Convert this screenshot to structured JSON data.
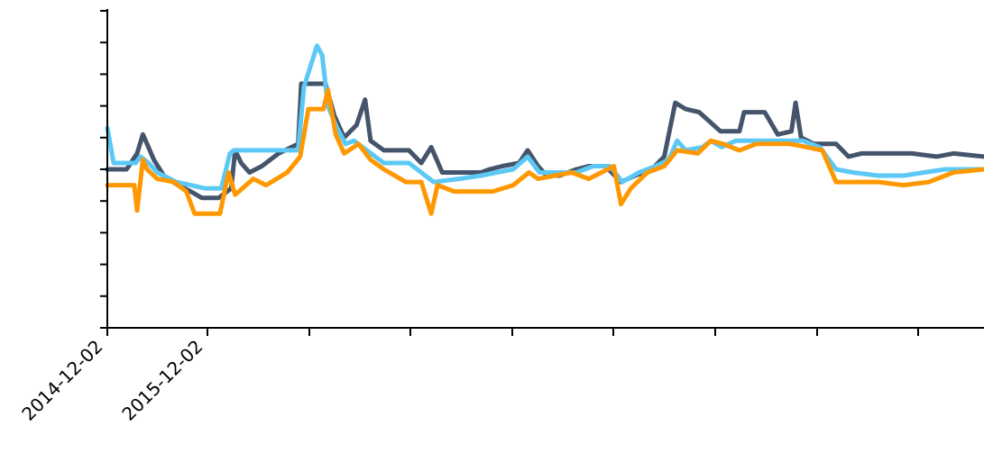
{
  "chart_data": {
    "type": "line",
    "title": "",
    "xlabel": "",
    "ylabel": "",
    "grid": false,
    "x_tick_labels": [
      "2014-12-02",
      "2015-12-02",
      "",
      "",
      "",
      "",
      "",
      "",
      ""
    ],
    "xlim": [
      "2014-12-02",
      "2023-08-20"
    ],
    "ylim": [
      0,
      10
    ],
    "y_tick_count": 11,
    "series": [
      {
        "color": "#44546A",
        "points": [
          [
            "2014-12-02",
            5.0
          ],
          [
            "2015-02-10",
            5.0
          ],
          [
            "2015-03-20",
            5.5
          ],
          [
            "2015-04-10",
            6.1
          ],
          [
            "2015-04-25",
            5.8
          ],
          [
            "2015-05-20",
            5.3
          ],
          [
            "2015-06-25",
            4.8
          ],
          [
            "2015-08-15",
            4.5
          ],
          [
            "2015-10-01",
            4.3
          ],
          [
            "2015-11-10",
            4.1
          ],
          [
            "2016-01-10",
            4.1
          ],
          [
            "2016-02-25",
            4.4
          ],
          [
            "2016-03-10",
            5.6
          ],
          [
            "2016-04-01",
            5.2
          ],
          [
            "2016-05-01",
            4.9
          ],
          [
            "2016-06-15",
            5.1
          ],
          [
            "2016-08-15",
            5.5
          ],
          [
            "2016-10-25",
            5.8
          ],
          [
            "2016-11-05",
            7.7
          ],
          [
            "2017-02-01",
            7.7
          ],
          [
            "2017-03-05",
            6.7
          ],
          [
            "2017-04-10",
            6.0
          ],
          [
            "2017-05-25",
            6.4
          ],
          [
            "2017-06-25",
            7.2
          ],
          [
            "2017-07-15",
            5.9
          ],
          [
            "2017-09-01",
            5.6
          ],
          [
            "2017-12-01",
            5.6
          ],
          [
            "2018-01-15",
            5.2
          ],
          [
            "2018-02-20",
            5.7
          ],
          [
            "2018-04-01",
            4.9
          ],
          [
            "2018-06-20",
            4.9
          ],
          [
            "2018-08-20",
            4.9
          ],
          [
            "2018-09-20",
            5.0
          ],
          [
            "2018-11-05",
            5.1
          ],
          [
            "2019-01-05",
            5.2
          ],
          [
            "2019-02-05",
            5.6
          ],
          [
            "2019-03-15",
            5.1
          ],
          [
            "2019-04-15",
            4.8
          ],
          [
            "2019-06-01",
            4.8
          ],
          [
            "2019-08-01",
            5.0
          ],
          [
            "2019-09-15",
            5.1
          ],
          [
            "2019-11-15",
            5.1
          ],
          [
            "2020-01-10",
            4.6
          ],
          [
            "2020-03-01",
            4.8
          ],
          [
            "2020-05-01",
            5.0
          ],
          [
            "2020-06-15",
            5.4
          ],
          [
            "2020-07-25",
            7.1
          ],
          [
            "2020-09-01",
            6.9
          ],
          [
            "2020-10-20",
            6.8
          ],
          [
            "2020-11-15",
            6.6
          ],
          [
            "2021-01-05",
            6.2
          ],
          [
            "2021-03-15",
            6.2
          ],
          [
            "2021-04-01",
            6.8
          ],
          [
            "2021-06-15",
            6.8
          ],
          [
            "2021-08-01",
            6.1
          ],
          [
            "2021-09-20",
            6.2
          ],
          [
            "2021-10-05",
            7.1
          ],
          [
            "2021-10-25",
            6.0
          ],
          [
            "2021-12-10",
            5.8
          ],
          [
            "2022-03-01",
            5.8
          ],
          [
            "2022-04-15",
            5.4
          ],
          [
            "2022-06-01",
            5.5
          ],
          [
            "2022-09-01",
            5.5
          ],
          [
            "2022-12-01",
            5.5
          ],
          [
            "2023-03-01",
            5.4
          ],
          [
            "2023-05-01",
            5.5
          ],
          [
            "2023-08-20",
            5.4
          ]
        ]
      },
      {
        "color": "#5BC8F5",
        "points": [
          [
            "2014-12-02",
            6.3
          ],
          [
            "2014-12-25",
            5.2
          ],
          [
            "2015-03-15",
            5.2
          ],
          [
            "2015-04-01",
            5.4
          ],
          [
            "2015-05-01",
            5.2
          ],
          [
            "2015-06-01",
            4.9
          ],
          [
            "2015-08-10",
            4.6
          ],
          [
            "2015-10-01",
            4.5
          ],
          [
            "2015-11-20",
            4.4
          ],
          [
            "2016-01-20",
            4.4
          ],
          [
            "2016-02-20",
            5.5
          ],
          [
            "2016-03-05",
            5.6
          ],
          [
            "2016-10-25",
            5.6
          ],
          [
            "2016-11-15",
            7.6
          ],
          [
            "2017-01-01",
            8.9
          ],
          [
            "2017-01-20",
            8.6
          ],
          [
            "2017-02-10",
            7.0
          ],
          [
            "2017-03-15",
            6.3
          ],
          [
            "2017-04-15",
            5.8
          ],
          [
            "2017-05-15",
            5.9
          ],
          [
            "2017-07-01",
            5.6
          ],
          [
            "2017-09-01",
            5.2
          ],
          [
            "2017-12-01",
            5.2
          ],
          [
            "2018-03-01",
            4.6
          ],
          [
            "2018-06-01",
            4.7
          ],
          [
            "2018-08-20",
            4.8
          ],
          [
            "2018-10-15",
            4.9
          ],
          [
            "2018-12-15",
            5.0
          ],
          [
            "2019-02-05",
            5.4
          ],
          [
            "2019-03-20",
            4.9
          ],
          [
            "2019-06-01",
            4.9
          ],
          [
            "2019-08-01",
            4.9
          ],
          [
            "2019-10-01",
            5.1
          ],
          [
            "2019-12-01",
            5.1
          ],
          [
            "2020-01-15",
            4.6
          ],
          [
            "2020-03-15",
            4.9
          ],
          [
            "2020-05-15",
            5.1
          ],
          [
            "2020-07-01",
            5.3
          ],
          [
            "2020-08-01",
            5.9
          ],
          [
            "2020-09-01",
            5.6
          ],
          [
            "2020-11-01",
            5.7
          ],
          [
            "2020-12-01",
            5.9
          ],
          [
            "2021-01-10",
            5.7
          ],
          [
            "2021-03-01",
            5.9
          ],
          [
            "2021-05-01",
            5.9
          ],
          [
            "2021-07-01",
            5.9
          ],
          [
            "2021-09-01",
            5.9
          ],
          [
            "2021-11-01",
            5.9
          ],
          [
            "2022-01-01",
            5.7
          ],
          [
            "2022-03-01",
            5.0
          ],
          [
            "2022-05-01",
            4.9
          ],
          [
            "2022-08-01",
            4.8
          ],
          [
            "2022-11-01",
            4.8
          ],
          [
            "2023-01-15",
            4.9
          ],
          [
            "2023-04-01",
            5.0
          ],
          [
            "2023-08-20",
            5.0
          ]
        ]
      },
      {
        "color": "#FF9800",
        "points": [
          [
            "2014-12-02",
            4.5
          ],
          [
            "2015-03-10",
            4.5
          ],
          [
            "2015-03-20",
            3.7
          ],
          [
            "2015-04-10",
            5.3
          ],
          [
            "2015-04-25",
            5.0
          ],
          [
            "2015-06-01",
            4.7
          ],
          [
            "2015-08-01",
            4.6
          ],
          [
            "2015-09-15",
            4.3
          ],
          [
            "2015-10-15",
            3.6
          ],
          [
            "2016-01-15",
            3.6
          ],
          [
            "2016-02-15",
            4.9
          ],
          [
            "2016-03-10",
            4.2
          ],
          [
            "2016-05-15",
            4.7
          ],
          [
            "2016-07-01",
            4.5
          ],
          [
            "2016-09-15",
            4.9
          ],
          [
            "2016-11-01",
            5.4
          ],
          [
            "2016-12-01",
            6.9
          ],
          [
            "2017-01-25",
            6.9
          ],
          [
            "2017-02-10",
            7.5
          ],
          [
            "2017-03-10",
            6.1
          ],
          [
            "2017-04-10",
            5.5
          ],
          [
            "2017-06-01",
            5.8
          ],
          [
            "2017-07-15",
            5.3
          ],
          [
            "2017-09-01",
            5.0
          ],
          [
            "2017-11-20",
            4.6
          ],
          [
            "2018-01-15",
            4.6
          ],
          [
            "2018-02-20",
            3.6
          ],
          [
            "2018-03-15",
            4.5
          ],
          [
            "2018-05-15",
            4.3
          ],
          [
            "2018-07-15",
            4.3
          ],
          [
            "2018-10-01",
            4.3
          ],
          [
            "2018-12-15",
            4.5
          ],
          [
            "2019-02-10",
            4.9
          ],
          [
            "2019-03-15",
            4.7
          ],
          [
            "2019-05-15",
            4.8
          ],
          [
            "2019-07-15",
            4.9
          ],
          [
            "2019-09-15",
            4.7
          ],
          [
            "2019-12-15",
            5.1
          ],
          [
            "2020-01-10",
            3.9
          ],
          [
            "2020-02-15",
            4.4
          ],
          [
            "2020-04-15",
            4.9
          ],
          [
            "2020-06-15",
            5.1
          ],
          [
            "2020-08-01",
            5.6
          ],
          [
            "2020-10-15",
            5.5
          ],
          [
            "2020-12-01",
            5.9
          ],
          [
            "2021-01-15",
            5.8
          ],
          [
            "2021-03-15",
            5.6
          ],
          [
            "2021-05-15",
            5.8
          ],
          [
            "2021-07-15",
            5.8
          ],
          [
            "2021-09-15",
            5.8
          ],
          [
            "2021-11-15",
            5.7
          ],
          [
            "2022-01-10",
            5.6
          ],
          [
            "2022-03-01",
            4.6
          ],
          [
            "2022-05-01",
            4.6
          ],
          [
            "2022-08-01",
            4.6
          ],
          [
            "2022-11-01",
            4.5
          ],
          [
            "2023-02-01",
            4.6
          ],
          [
            "2023-05-01",
            4.9
          ],
          [
            "2023-08-20",
            5.0
          ]
        ]
      }
    ]
  }
}
